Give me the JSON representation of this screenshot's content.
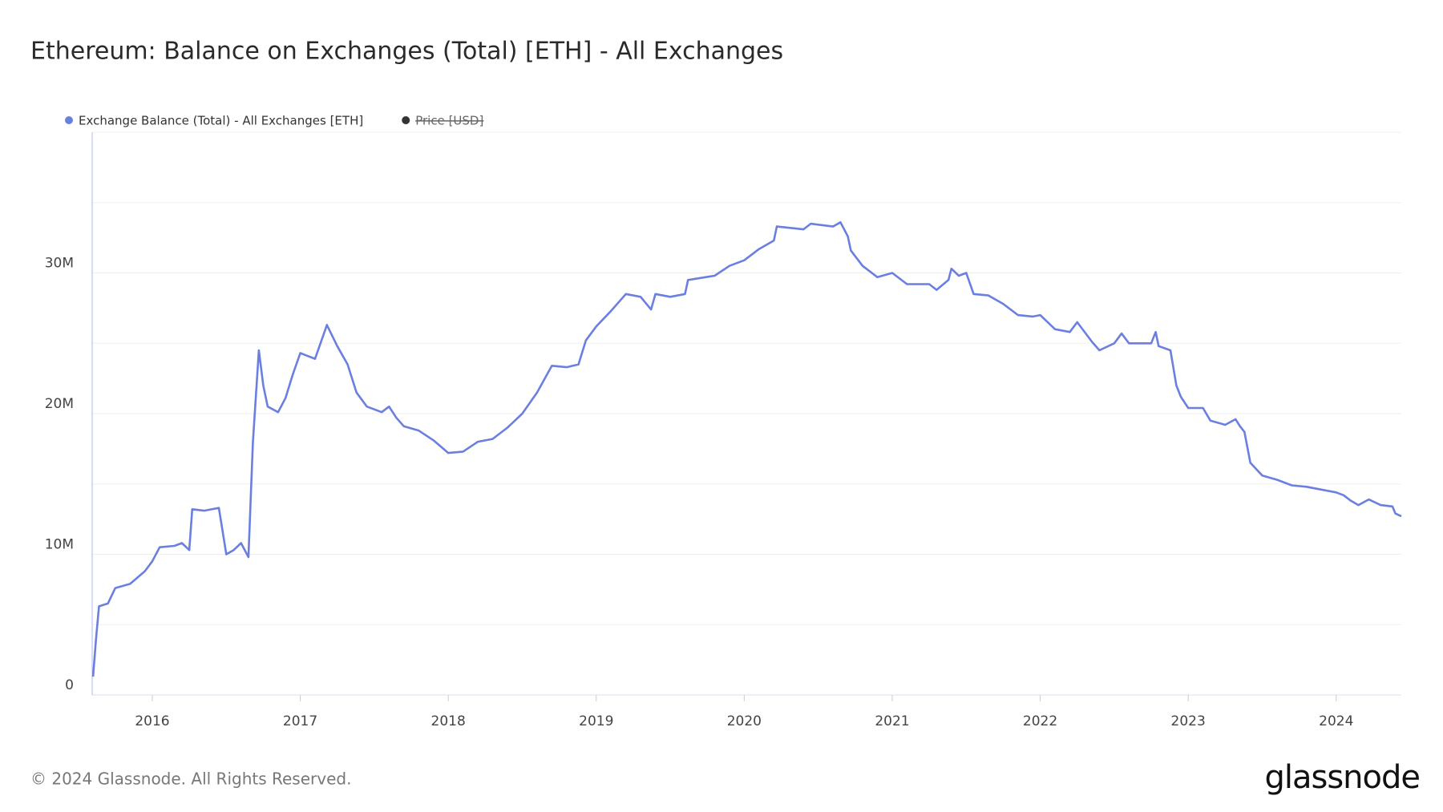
{
  "chart_data": {
    "type": "line",
    "title": "Ethereum: Balance on Exchanges (Total) [ETH] - All Exchanges",
    "x": [
      2015.6,
      2015.62,
      2015.64,
      2015.7,
      2015.75,
      2015.85,
      2015.95,
      2016.0,
      2016.05,
      2016.15,
      2016.2,
      2016.25,
      2016.27,
      2016.35,
      2016.45,
      2016.5,
      2016.55,
      2016.6,
      2016.65,
      2016.68,
      2016.72,
      2016.75,
      2016.78,
      2016.85,
      2016.9,
      2016.95,
      2017.0,
      2017.1,
      2017.18,
      2017.25,
      2017.32,
      2017.38,
      2017.45,
      2017.55,
      2017.6,
      2017.65,
      2017.7,
      2017.8,
      2017.9,
      2018.0,
      2018.1,
      2018.2,
      2018.3,
      2018.4,
      2018.5,
      2018.6,
      2018.7,
      2018.8,
      2018.88,
      2018.93,
      2019.0,
      2019.1,
      2019.2,
      2019.3,
      2019.37,
      2019.4,
      2019.5,
      2019.6,
      2019.62,
      2019.8,
      2019.9,
      2020.0,
      2020.1,
      2020.2,
      2020.22,
      2020.4,
      2020.45,
      2020.6,
      2020.65,
      2020.7,
      2020.72,
      2020.8,
      2020.9,
      2021.0,
      2021.1,
      2021.25,
      2021.3,
      2021.38,
      2021.4,
      2021.45,
      2021.5,
      2021.55,
      2021.65,
      2021.75,
      2021.85,
      2021.95,
      2022.0,
      2022.1,
      2022.2,
      2022.25,
      2022.35,
      2022.4,
      2022.5,
      2022.55,
      2022.6,
      2022.75,
      2022.78,
      2022.8,
      2022.88,
      2022.92,
      2022.95,
      2023.0,
      2023.1,
      2023.15,
      2023.25,
      2023.32,
      2023.35,
      2023.38,
      2023.42,
      2023.5,
      2023.6,
      2023.7,
      2023.8,
      2023.9,
      2024.0,
      2024.05,
      2024.1,
      2024.15,
      2024.22,
      2024.3,
      2024.38,
      2024.4,
      2024.44
    ],
    "series": [
      {
        "name": "Exchange Balance (Total) - All Exchanges [ETH]",
        "color": "#6b7fe0",
        "values": [
          1300000,
          4000000,
          6300000,
          6500000,
          7600000,
          7900000,
          8800000,
          9500000,
          10500000,
          10600000,
          10800000,
          10300000,
          13200000,
          13100000,
          13300000,
          10000000,
          10300000,
          10800000,
          9800000,
          18000000,
          24500000,
          22000000,
          20500000,
          20100000,
          21100000,
          22800000,
          24300000,
          23900000,
          26300000,
          24800000,
          23500000,
          21500000,
          20500000,
          20100000,
          20500000,
          19700000,
          19100000,
          18800000,
          18100000,
          17200000,
          17300000,
          18000000,
          18200000,
          19000000,
          20000000,
          21500000,
          23400000,
          23300000,
          23500000,
          25200000,
          26200000,
          27300000,
          28500000,
          28300000,
          27400000,
          28500000,
          28300000,
          28500000,
          29500000,
          29800000,
          30500000,
          30900000,
          31700000,
          32300000,
          33300000,
          33100000,
          33500000,
          33300000,
          33600000,
          32600000,
          31600000,
          30500000,
          29700000,
          30000000,
          29200000,
          29200000,
          28800000,
          29500000,
          30300000,
          29800000,
          30000000,
          28500000,
          28400000,
          27800000,
          27000000,
          26900000,
          27000000,
          26000000,
          25800000,
          26500000,
          25100000,
          24500000,
          25000000,
          25700000,
          25000000,
          25000000,
          25800000,
          24800000,
          24500000,
          22000000,
          21200000,
          20400000,
          20400000,
          19500000,
          19200000,
          19600000,
          19100000,
          18700000,
          16500000,
          15600000,
          15300000,
          14900000,
          14800000,
          14600000,
          14400000,
          14200000,
          13800000,
          13500000,
          13900000,
          13500000,
          13400000,
          12900000,
          12700000
        ]
      },
      {
        "name": "Price [USD]",
        "color": "#333333",
        "hidden": true
      }
    ],
    "xlim": [
      2015.594,
      2024.44
    ],
    "xticks": [
      2016,
      2017,
      2018,
      2019,
      2020,
      2021,
      2022,
      2023,
      2024
    ],
    "ylim": [
      0,
      40000000
    ],
    "yticks": [
      0,
      {
        "value": 10000000,
        "label": "10M"
      },
      {
        "value": 20000000,
        "label": "20M"
      },
      {
        "value": 30000000,
        "label": "30M"
      }
    ],
    "grid": true
  },
  "footer": {
    "copyright": "© 2024 Glassnode. All Rights Reserved.",
    "logo": "glassnode"
  }
}
